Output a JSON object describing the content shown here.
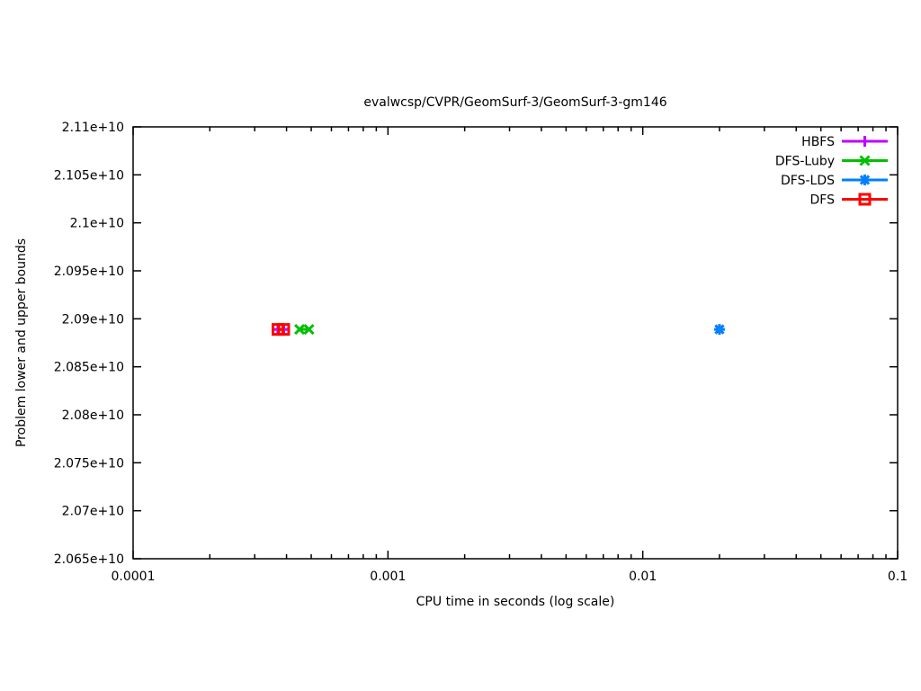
{
  "title": "evalwcsp/CVPR/GeomSurf-3/GeomSurf-3-gm146",
  "chart_data": {
    "type": "line",
    "title": "evalwcsp/CVPR/GeomSurf-3/GeomSurf-3-gm146",
    "xlabel": "CPU time in seconds (log scale)",
    "ylabel": "Problem lower and upper bounds",
    "x_scale": "log",
    "xlim": [
      0.0001,
      0.1
    ],
    "ylim": [
      20650000000,
      21100000000
    ],
    "x_ticks": [
      0.0001,
      0.001,
      0.01,
      0.1
    ],
    "x_tick_labels": [
      "0.0001",
      "0.001",
      "0.01",
      "0.1"
    ],
    "y_ticks": [
      20650000000,
      20700000000,
      20750000000,
      20800000000,
      20850000000,
      20900000000,
      20950000000,
      21000000000,
      21050000000,
      21100000000
    ],
    "y_tick_labels": [
      "2.065e+10",
      "2.07e+10",
      "2.075e+10",
      "2.08e+10",
      "2.085e+10",
      "2.09e+10",
      "2.095e+10",
      "2.1e+10",
      "2.105e+10",
      "2.11e+10"
    ],
    "grid": false,
    "legend_position": "top-right",
    "series": [
      {
        "name": "HBFS",
        "color": "#c000ff",
        "marker": "plus",
        "x": [
          0.00037,
          0.00039
        ],
        "y": [
          20889000000,
          20889000000
        ]
      },
      {
        "name": "DFS-Luby",
        "color": "#00c000",
        "marker": "x",
        "x": [
          0.00045,
          0.00049
        ],
        "y": [
          20889000000,
          20889000000
        ]
      },
      {
        "name": "DFS-LDS",
        "color": "#0080ff",
        "marker": "star",
        "x": [
          0.02
        ],
        "y": [
          20889000000
        ]
      },
      {
        "name": "DFS",
        "color": "#ff0000",
        "marker": "square-open",
        "x": [
          0.00037,
          0.00039
        ],
        "y": [
          20889000000,
          20889000000
        ]
      }
    ]
  },
  "colors": {
    "frame": "#000000",
    "text": "#000000",
    "background": "#ffffff"
  }
}
